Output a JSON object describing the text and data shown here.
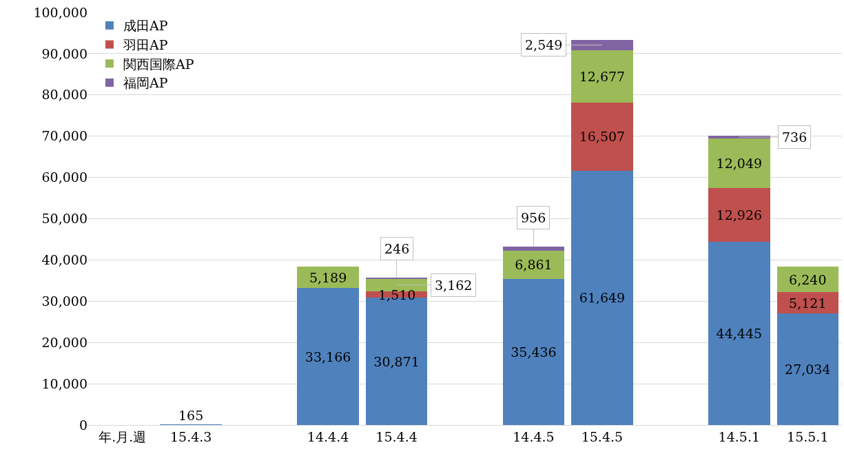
{
  "chart_data": {
    "type": "bar",
    "stacked": true,
    "categories": [
      "年.月.週",
      "15.4.3",
      null,
      "14.4.4",
      "15.4.4",
      null,
      "14.4.5",
      "15.4.5",
      null,
      "14.5.1",
      "15.5.1"
    ],
    "series": [
      {
        "name": "成田AP",
        "color": "#4f81bd",
        "values": [
          null,
          165,
          null,
          33166,
          30871,
          null,
          35436,
          61649,
          null,
          44445,
          27034
        ],
        "value_labels": [
          null,
          "165",
          null,
          "33,166",
          "30,871",
          null,
          "35,436",
          "61,649",
          null,
          "44,445",
          "27,034"
        ]
      },
      {
        "name": "羽田AP",
        "color": "#c0504d",
        "values": [
          null,
          null,
          null,
          null,
          1510,
          null,
          null,
          16507,
          null,
          12926,
          5121
        ],
        "value_labels": [
          null,
          null,
          null,
          null,
          "1,510",
          null,
          null,
          "16,507",
          null,
          "12,926",
          "5,121"
        ]
      },
      {
        "name": "関西国際AP",
        "color": "#9bbb59",
        "values": [
          null,
          null,
          null,
          5189,
          3162,
          null,
          6861,
          12677,
          null,
          12049,
          6240
        ],
        "value_labels": [
          null,
          null,
          null,
          "5,189",
          "3,162",
          null,
          "6,861",
          "12,677",
          null,
          "12,049",
          "6,240"
        ]
      },
      {
        "name": "福岡AP",
        "color": "#8064a2",
        "values": [
          null,
          null,
          null,
          null,
          246,
          null,
          956,
          2549,
          null,
          736,
          null
        ],
        "value_labels": [
          null,
          null,
          null,
          null,
          "246",
          null,
          "956",
          "2,549",
          null,
          "736",
          null
        ]
      }
    ],
    "ylim": [
      0,
      100000
    ],
    "yticks": [
      {
        "value": 0,
        "label": "0"
      },
      {
        "value": 10000,
        "label": "10,000"
      },
      {
        "value": 20000,
        "label": "20,000"
      },
      {
        "value": 30000,
        "label": "30,000"
      },
      {
        "value": 40000,
        "label": "40,000"
      },
      {
        "value": 50000,
        "label": "50,000"
      },
      {
        "value": 60000,
        "label": "60,000"
      },
      {
        "value": 70000,
        "label": "70,000"
      },
      {
        "value": 80000,
        "label": "80,000"
      },
      {
        "value": 90000,
        "label": "90,000"
      },
      {
        "value": 100000,
        "label": "100,000"
      }
    ],
    "grid": "y",
    "legend": "top left"
  }
}
